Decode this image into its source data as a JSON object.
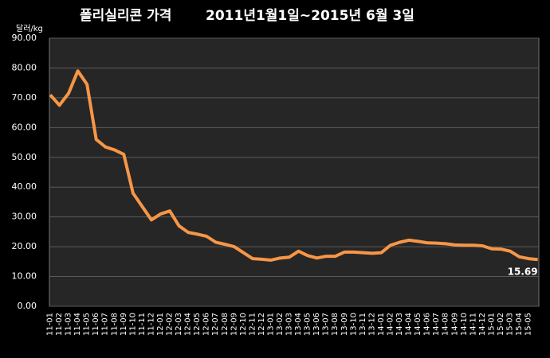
{
  "chart_data": {
    "type": "line",
    "title": "폴리실리콘 가격",
    "subtitle": "2011년1월1일~2015년 6월 3일",
    "y_label": "달러/kg",
    "categories": [
      "11-01",
      "11-02",
      "11-03",
      "11-04",
      "11-05",
      "11-06",
      "11-07",
      "11-08",
      "11-09",
      "11-10",
      "11-11",
      "11-12",
      "12-01",
      "12-02",
      "12-03",
      "12-04",
      "12-05",
      "12-06",
      "12-07",
      "12-08",
      "12-09",
      "12-10",
      "12-11",
      "12-12",
      "13-01",
      "13-02",
      "13-03",
      "13-04",
      "13-05",
      "13-06",
      "13-07",
      "13-08",
      "13-09",
      "13-10",
      "13-11",
      "13-12",
      "14-01",
      "14-02",
      "14-03",
      "14-04",
      "14-05",
      "14-06",
      "14-07",
      "14-08",
      "14-09",
      "14-10",
      "14-11",
      "14-12",
      "15-01",
      "15-02",
      "15-03",
      "15-04",
      "15-05",
      null
    ],
    "values": [
      71,
      67.5,
      71.5,
      79,
      74.5,
      56,
      53.5,
      52.5,
      51,
      38,
      33.5,
      29,
      31,
      32,
      27,
      24.8,
      24.2,
      23.5,
      21.5,
      20.8,
      20,
      18,
      16,
      15.8,
      15.5,
      16.2,
      16.5,
      18.5,
      17,
      16.2,
      16.8,
      16.8,
      18.2,
      18.2,
      18,
      17.8,
      18,
      20.5,
      21.5,
      22.2,
      21.8,
      21.3,
      21.2,
      21,
      20.6,
      20.5,
      20.5,
      20.3,
      19.3,
      19.2,
      18.5,
      16.6,
      16,
      15.69
    ],
    "color": "#f79646",
    "ylim": [
      0,
      90
    ],
    "yticks": [
      {
        "value": 0,
        "label": "0.00"
      },
      {
        "value": 10,
        "label": "10.00"
      },
      {
        "value": 20,
        "label": "20.00"
      },
      {
        "value": 30,
        "label": "30.00"
      },
      {
        "value": 40,
        "label": "40.00"
      },
      {
        "value": 50,
        "label": "50.00"
      },
      {
        "value": 60,
        "label": "60.00"
      },
      {
        "value": 70,
        "label": "70.00"
      },
      {
        "value": 80,
        "label": "80.00"
      },
      {
        "value": 90,
        "label": "90.00"
      }
    ],
    "grid": true,
    "labeled_point": 53
  }
}
